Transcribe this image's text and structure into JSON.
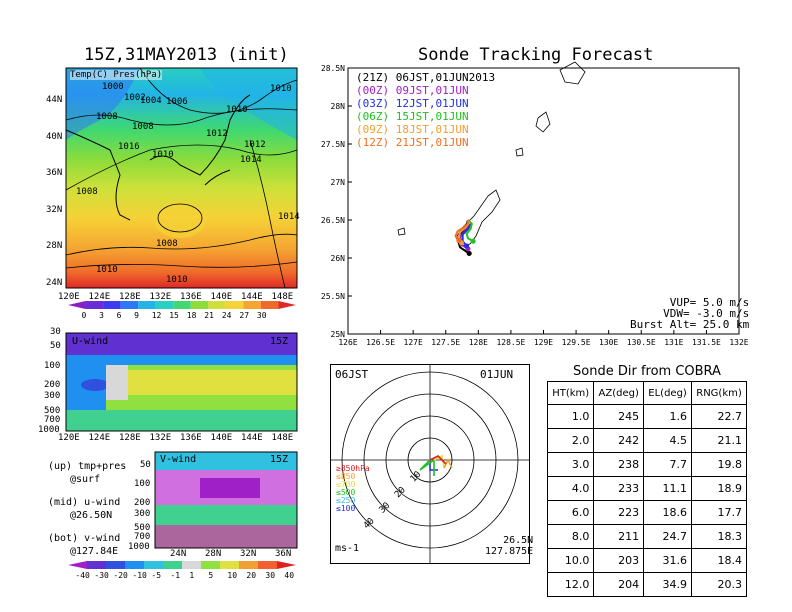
{
  "left": {
    "map_title": "15Z,31MAY2013 (init)",
    "map_legend_label": "Temp(C) Pres(hPa)",
    "lat_labels": [
      "44N",
      "40N",
      "36N",
      "32N",
      "28N",
      "24N"
    ],
    "lon_labels": [
      "120E",
      "124E",
      "128E",
      "132E",
      "136E",
      "140E",
      "144E",
      "148E"
    ],
    "temp_colorbar": [
      "0",
      "3",
      "6",
      "9",
      "12",
      "15",
      "18",
      "21",
      "24",
      "27",
      "30"
    ],
    "isobar_labels": [
      "1000",
      "1002",
      "1004",
      "1006",
      "1008",
      "1008",
      "1010",
      "1010",
      "1012",
      "1012",
      "1014",
      "1014",
      "1016",
      "1010",
      "1008",
      "1008",
      "1010",
      "1010"
    ],
    "uwind_title": "U-wind",
    "uwind_time": "15Z",
    "pres_levels": [
      "30",
      "50",
      "100",
      "200",
      "300",
      "500",
      "700",
      "1000"
    ],
    "vwind_title": "V-wind",
    "vwind_time": "15Z",
    "vwind_pres_levels": [
      "50",
      "100",
      "200",
      "300",
      "500",
      "700",
      "1000"
    ],
    "vwind_lat_labels": [
      "24N",
      "28N",
      "32N",
      "36N"
    ],
    "wind_colorbar": [
      "-40",
      "-30",
      "-20",
      "-10",
      "-5",
      "-1",
      "1",
      "5",
      "10",
      "20",
      "30",
      "40"
    ],
    "notes": [
      {
        "line1": "(up) tmp+pres",
        "line2": "@surf"
      },
      {
        "line1": "(mid) u-wind",
        "line2": "@26.50N"
      },
      {
        "line1": "(bot) v-wind",
        "line2": "@127.84E"
      }
    ]
  },
  "colors": {
    "temp_scale": [
      "#8a1fbf",
      "#6b2cd8",
      "#3c3cf0",
      "#2f78f5",
      "#22b4e6",
      "#29cfc0",
      "#3fd872",
      "#8edc3a",
      "#cfe03a",
      "#f5d236",
      "#f5a632",
      "#ef6a2a",
      "#e02828"
    ],
    "wind_scale": [
      "#a020c8",
      "#6030d0",
      "#3050e0",
      "#2090f0",
      "#30c0e0",
      "#40d090",
      "#d8d8d8",
      "#90e040",
      "#e0e040",
      "#f0a030",
      "#f06030",
      "#e02020"
    ],
    "track": [
      "#000000",
      "#a020c8",
      "#2030e0",
      "#20c020",
      "#f0a030",
      "#f07020"
    ]
  },
  "chart_data": {
    "type": "scatter",
    "title": "Sonde Tracking Forecast",
    "xlim": [
      126,
      132
    ],
    "ylim": [
      25,
      28.5
    ],
    "x_ticks": [
      "126E",
      "126.5E",
      "127E",
      "127.5E",
      "128E",
      "128.5E",
      "129E",
      "129.5E",
      "130E",
      "130.5E",
      "131E",
      "131.5E",
      "132E"
    ],
    "y_ticks": [
      "28.5N",
      "28N",
      "27.5N",
      "27N",
      "26.5N",
      "26N",
      "25.5N",
      "25N"
    ],
    "legend": [
      "(21Z) 06JST,01JUN2013",
      "(00Z) 09JST,01JUN",
      "(03Z) 12JST,01JUN",
      "(06Z) 15JST,01JUN",
      "(09Z) 18JST,01JUN",
      "(12Z) 21JST,01JUN"
    ],
    "params": [
      "VUP= 5.0 m/s",
      "VDW= -3.0 m/s",
      "Burst Alt= 25.0 km"
    ],
    "series": [
      {
        "x": [
          127.84,
          127.82,
          127.75,
          127.68,
          127.72,
          127.86
        ],
        "y": [
          26.5,
          26.42,
          26.33,
          26.25,
          26.14,
          26.06
        ]
      },
      {
        "x": [
          127.84,
          127.86,
          127.8,
          127.72,
          127.74,
          127.84
        ],
        "y": [
          26.5,
          26.43,
          26.36,
          26.28,
          26.18,
          26.12
        ]
      },
      {
        "x": [
          127.84,
          127.88,
          127.84,
          127.76,
          127.76,
          127.82
        ],
        "y": [
          26.5,
          26.44,
          26.38,
          26.31,
          26.22,
          26.16
        ]
      },
      {
        "x": [
          127.84,
          127.9,
          127.88,
          127.82,
          127.84,
          127.92
        ],
        "y": [
          26.5,
          26.45,
          26.38,
          26.32,
          26.26,
          26.22
        ]
      },
      {
        "x": [
          127.84,
          127.86,
          127.8,
          127.72,
          127.7,
          127.74
        ],
        "y": [
          26.5,
          26.46,
          26.4,
          26.34,
          26.27,
          26.2
        ]
      },
      {
        "x": [
          127.84,
          127.84,
          127.77,
          127.68,
          127.65,
          127.7
        ],
        "y": [
          26.5,
          26.45,
          26.4,
          26.35,
          26.29,
          26.23
        ]
      }
    ]
  },
  "radar": {
    "time_left": "06JST",
    "time_right": "01JUN",
    "loc_line1": "26.5N",
    "loc_line2": "127.875E",
    "unit": "ms-1",
    "ring_labels": [
      "10",
      "20",
      "30",
      "40"
    ],
    "key": [
      {
        "label": "≥850hPa",
        "color": "#e02020"
      },
      {
        "label": "≤850",
        "color": "#f0a030"
      },
      {
        "label": "≤700",
        "color": "#e0e040"
      },
      {
        "label": "≤500",
        "color": "#20c020"
      },
      {
        "label": "≤250",
        "color": "#30c0e0"
      },
      {
        "label": "≤100",
        "color": "#2030e0"
      }
    ]
  },
  "table": {
    "title": "Sonde Dir from COBRA",
    "headers": [
      "HT(km)",
      "AZ(deg)",
      "EL(deg)",
      "RNG(km)"
    ],
    "rows": [
      [
        "1.0",
        "245",
        "1.6",
        "22.7"
      ],
      [
        "2.0",
        "242",
        "4.5",
        "21.1"
      ],
      [
        "3.0",
        "238",
        "7.7",
        "19.8"
      ],
      [
        "4.0",
        "233",
        "11.1",
        "18.9"
      ],
      [
        "6.0",
        "223",
        "18.6",
        "17.7"
      ],
      [
        "8.0",
        "211",
        "24.7",
        "18.3"
      ],
      [
        "10.0",
        "203",
        "31.6",
        "18.4"
      ],
      [
        "12.0",
        "204",
        "34.9",
        "20.3"
      ]
    ]
  }
}
